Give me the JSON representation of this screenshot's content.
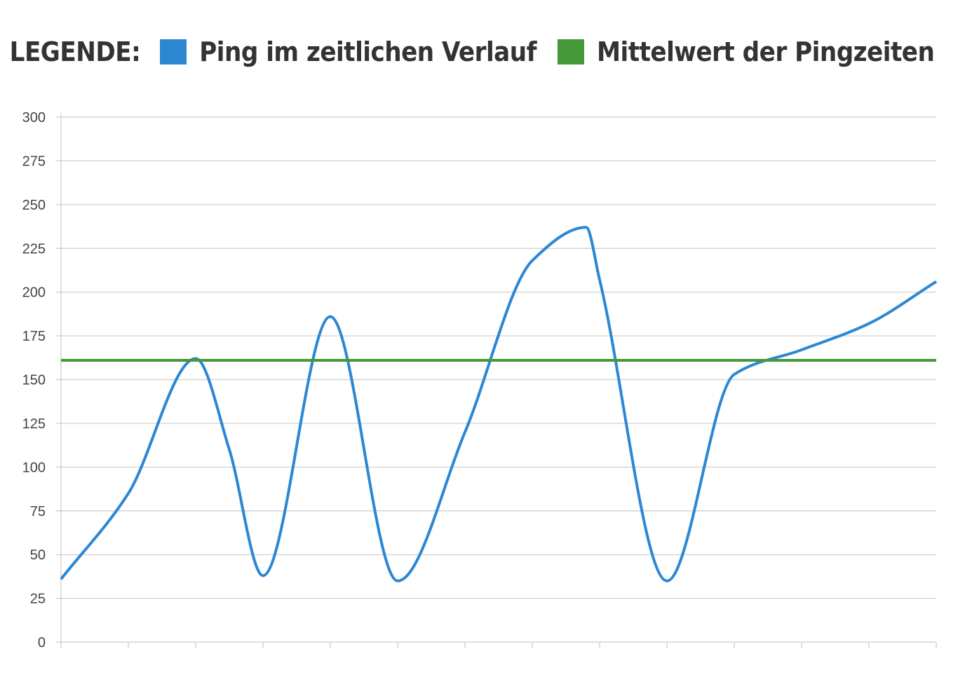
{
  "legend": {
    "title": "LEGENDE:",
    "items": [
      {
        "label": "Ping im zeitlichen Verlauf",
        "color": "#2d87d3"
      },
      {
        "label": "Mittelwert der Pingzeiten",
        "color": "#45993a"
      }
    ]
  },
  "chart_data": {
    "type": "line",
    "title": "",
    "xlabel": "",
    "ylabel": "",
    "ylim": [
      0,
      300
    ],
    "yticks": [
      0,
      25,
      50,
      75,
      100,
      125,
      150,
      175,
      200,
      225,
      250,
      275,
      300
    ],
    "x_tick_count": 14,
    "grid": true,
    "legend_position": "top",
    "series": [
      {
        "name": "Ping im zeitlichen Verlauf",
        "color": "#2d87d3",
        "smooth": true,
        "x": [
          0,
          1,
          2,
          2.5,
          3,
          4,
          5,
          6,
          7,
          7.8,
          8,
          9,
          10,
          11,
          12,
          13
        ],
        "values": [
          36,
          85,
          162,
          110,
          38,
          186,
          35,
          120,
          218,
          237,
          207,
          35,
          153,
          167,
          182,
          206
        ]
      },
      {
        "name": "Mittelwert der Pingzeiten",
        "color": "#45993a",
        "smooth": false,
        "x": [
          0,
          13
        ],
        "values": [
          161,
          161
        ]
      }
    ]
  }
}
